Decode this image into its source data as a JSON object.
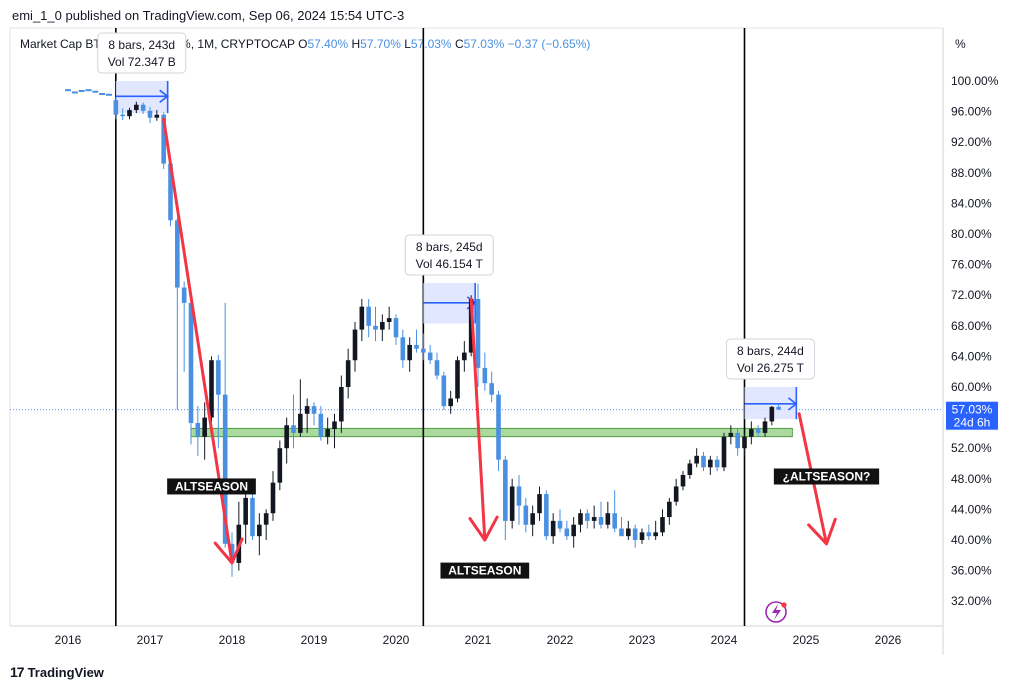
{
  "header": {
    "publish_line": "emi_1_0 published on TradingView.com, Sep 06, 2024 15:54 UTC-3",
    "symbol": "Market Cap BTC Dominance, %, 1M, CRYPTOCAP",
    "open_label": "O",
    "open_value": "57.40%",
    "high_label": "H",
    "high_value": "57.70%",
    "low_label": "L",
    "low_value": "57.03%",
    "close_label": "C",
    "close_value": "57.03%",
    "change": "−0.37 (−0.65%)"
  },
  "footer": {
    "logo_text": "TradingView"
  },
  "colors": {
    "up": "#131722",
    "down": "#4a90e2",
    "arrow": "#f23645",
    "zone": "#8fce7e",
    "measure_fill": "#dbe3ff",
    "measure_line": "#2962ff",
    "price_tag": "#2962ff"
  },
  "chart_data": {
    "type": "candlestick",
    "y_unit": "%",
    "ylim": [
      29,
      102
    ],
    "y_ticks": [
      "100.00%",
      "96.00%",
      "92.00%",
      "88.00%",
      "84.00%",
      "80.00%",
      "76.00%",
      "72.00%",
      "68.00%",
      "64.00%",
      "60.00%",
      "56.00%",
      "52.00%",
      "48.00%",
      "44.00%",
      "40.00%",
      "36.00%",
      "32.00%"
    ],
    "x_ticks": [
      "2016",
      "2017",
      "2018",
      "2019",
      "2020",
      "2021",
      "2022",
      "2023",
      "2024",
      "2025",
      "2026"
    ],
    "last_price_label": "57.03%",
    "countdown_label": "24d 6h",
    "candles": [
      {
        "d": "2016-08",
        "o": 97.5,
        "h": 97.9,
        "l": 95.0,
        "c": 95.6
      },
      {
        "d": "2016-09",
        "o": 95.6,
        "h": 96.4,
        "l": 94.9,
        "c": 95.4
      },
      {
        "d": "2016-10",
        "o": 95.4,
        "h": 96.5,
        "l": 95.0,
        "c": 96.2
      },
      {
        "d": "2016-11",
        "o": 96.2,
        "h": 97.3,
        "l": 95.8,
        "c": 96.9
      },
      {
        "d": "2016-12",
        "o": 96.9,
        "h": 97.2,
        "l": 95.7,
        "c": 96.1
      },
      {
        "d": "2017-01",
        "o": 96.1,
        "h": 96.6,
        "l": 94.5,
        "c": 95.2
      },
      {
        "d": "2017-02",
        "o": 95.2,
        "h": 96.2,
        "l": 94.8,
        "c": 95.6
      },
      {
        "d": "2017-03",
        "o": 95.6,
        "h": 95.9,
        "l": 88.5,
        "c": 89.2
      },
      {
        "d": "2017-04",
        "o": 89.2,
        "h": 89.5,
        "l": 81.0,
        "c": 81.8
      },
      {
        "d": "2017-05",
        "o": 81.8,
        "h": 82.1,
        "l": 57.0,
        "c": 73.0
      },
      {
        "d": "2017-06",
        "o": 73.0,
        "h": 73.8,
        "l": 62.0,
        "c": 71.0
      },
      {
        "d": "2017-07",
        "o": 71.0,
        "h": 71.9,
        "l": 52.5,
        "c": 55.3
      },
      {
        "d": "2017-08",
        "o": 55.3,
        "h": 57.5,
        "l": 51.0,
        "c": 53.5
      },
      {
        "d": "2017-09",
        "o": 53.5,
        "h": 58.0,
        "l": 50.5,
        "c": 56.0
      },
      {
        "d": "2017-10",
        "o": 56.0,
        "h": 64.0,
        "l": 55.0,
        "c": 63.5
      },
      {
        "d": "2017-11",
        "o": 63.5,
        "h": 64.2,
        "l": 52.0,
        "c": 59.0
      },
      {
        "d": "2017-12",
        "o": 59.0,
        "h": 71.0,
        "l": 39.0,
        "c": 39.5
      },
      {
        "d": "2018-01",
        "o": 39.5,
        "h": 41.0,
        "l": 35.2,
        "c": 37.0
      },
      {
        "d": "2018-02",
        "o": 37.0,
        "h": 45.0,
        "l": 36.0,
        "c": 42.0
      },
      {
        "d": "2018-03",
        "o": 42.0,
        "h": 46.5,
        "l": 39.5,
        "c": 45.5
      },
      {
        "d": "2018-04",
        "o": 45.5,
        "h": 47.0,
        "l": 40.0,
        "c": 40.5
      },
      {
        "d": "2018-05",
        "o": 40.5,
        "h": 43.5,
        "l": 38.0,
        "c": 42.0
      },
      {
        "d": "2018-06",
        "o": 42.0,
        "h": 44.0,
        "l": 40.0,
        "c": 43.5
      },
      {
        "d": "2018-07",
        "o": 43.5,
        "h": 49.0,
        "l": 42.5,
        "c": 47.5
      },
      {
        "d": "2018-08",
        "o": 47.5,
        "h": 53.0,
        "l": 46.5,
        "c": 52.0
      },
      {
        "d": "2018-09",
        "o": 52.0,
        "h": 56.0,
        "l": 50.0,
        "c": 55.0
      },
      {
        "d": "2018-10",
        "o": 55.0,
        "h": 59.0,
        "l": 52.0,
        "c": 54.0
      },
      {
        "d": "2018-11",
        "o": 54.0,
        "h": 61.0,
        "l": 53.5,
        "c": 56.5
      },
      {
        "d": "2018-12",
        "o": 56.5,
        "h": 58.5,
        "l": 54.0,
        "c": 57.5
      },
      {
        "d": "2019-01",
        "o": 57.5,
        "h": 58.0,
        "l": 55.0,
        "c": 56.5
      },
      {
        "d": "2019-02",
        "o": 56.5,
        "h": 57.5,
        "l": 53.0,
        "c": 53.5
      },
      {
        "d": "2019-03",
        "o": 53.5,
        "h": 56.0,
        "l": 52.5,
        "c": 54.5
      },
      {
        "d": "2019-04",
        "o": 54.5,
        "h": 56.5,
        "l": 52.0,
        "c": 55.5
      },
      {
        "d": "2019-05",
        "o": 55.5,
        "h": 61.5,
        "l": 54.0,
        "c": 60.0
      },
      {
        "d": "2019-06",
        "o": 60.0,
        "h": 65.0,
        "l": 58.5,
        "c": 63.5
      },
      {
        "d": "2019-07",
        "o": 63.5,
        "h": 68.5,
        "l": 62.0,
        "c": 67.5
      },
      {
        "d": "2019-08",
        "o": 67.5,
        "h": 71.5,
        "l": 66.0,
        "c": 70.5
      },
      {
        "d": "2019-09",
        "o": 70.5,
        "h": 71.5,
        "l": 66.5,
        "c": 68.0
      },
      {
        "d": "2019-10",
        "o": 68.0,
        "h": 70.5,
        "l": 66.0,
        "c": 67.5
      },
      {
        "d": "2019-11",
        "o": 67.5,
        "h": 69.5,
        "l": 66.0,
        "c": 68.5
      },
      {
        "d": "2019-12",
        "o": 68.5,
        "h": 70.5,
        "l": 67.5,
        "c": 69.0
      },
      {
        "d": "2020-01",
        "o": 69.0,
        "h": 69.5,
        "l": 65.5,
        "c": 66.5
      },
      {
        "d": "2020-02",
        "o": 66.5,
        "h": 67.5,
        "l": 62.5,
        "c": 63.5
      },
      {
        "d": "2020-03",
        "o": 63.5,
        "h": 66.5,
        "l": 62.0,
        "c": 65.5
      },
      {
        "d": "2020-04",
        "o": 65.5,
        "h": 67.5,
        "l": 64.5,
        "c": 65.0
      },
      {
        "d": "2020-05",
        "o": 65.0,
        "h": 67.0,
        "l": 63.5,
        "c": 64.5
      },
      {
        "d": "2020-06",
        "o": 64.5,
        "h": 65.5,
        "l": 63.0,
        "c": 63.5
      },
      {
        "d": "2020-07",
        "o": 63.5,
        "h": 64.5,
        "l": 61.0,
        "c": 61.5
      },
      {
        "d": "2020-08",
        "o": 61.5,
        "h": 62.0,
        "l": 57.0,
        "c": 57.5
      },
      {
        "d": "2020-09",
        "o": 57.5,
        "h": 59.5,
        "l": 56.5,
        "c": 58.5
      },
      {
        "d": "2020-10",
        "o": 58.5,
        "h": 64.0,
        "l": 58.0,
        "c": 63.5
      },
      {
        "d": "2020-11",
        "o": 63.5,
        "h": 66.0,
        "l": 62.0,
        "c": 64.5
      },
      {
        "d": "2020-12",
        "o": 64.5,
        "h": 72.0,
        "l": 64.0,
        "c": 71.5
      },
      {
        "d": "2021-01",
        "o": 71.5,
        "h": 73.5,
        "l": 60.0,
        "c": 62.5
      },
      {
        "d": "2021-02",
        "o": 62.5,
        "h": 64.5,
        "l": 59.5,
        "c": 60.5
      },
      {
        "d": "2021-03",
        "o": 60.5,
        "h": 62.0,
        "l": 58.0,
        "c": 59.0
      },
      {
        "d": "2021-04",
        "o": 59.0,
        "h": 59.5,
        "l": 49.0,
        "c": 50.5
      },
      {
        "d": "2021-05",
        "o": 50.5,
        "h": 51.0,
        "l": 40.0,
        "c": 42.5
      },
      {
        "d": "2021-06",
        "o": 42.5,
        "h": 48.0,
        "l": 41.5,
        "c": 47.0
      },
      {
        "d": "2021-07",
        "o": 47.0,
        "h": 48.5,
        "l": 42.0,
        "c": 44.5
      },
      {
        "d": "2021-08",
        "o": 44.5,
        "h": 45.5,
        "l": 41.0,
        "c": 42.0
      },
      {
        "d": "2021-09",
        "o": 42.0,
        "h": 44.5,
        "l": 40.5,
        "c": 43.5
      },
      {
        "d": "2021-10",
        "o": 43.5,
        "h": 47.0,
        "l": 42.5,
        "c": 46.0
      },
      {
        "d": "2021-11",
        "o": 46.0,
        "h": 46.5,
        "l": 40.0,
        "c": 40.5
      },
      {
        "d": "2021-12",
        "o": 40.5,
        "h": 43.5,
        "l": 39.5,
        "c": 42.5
      },
      {
        "d": "2022-01",
        "o": 42.5,
        "h": 44.0,
        "l": 41.0,
        "c": 41.5
      },
      {
        "d": "2022-02",
        "o": 41.5,
        "h": 42.5,
        "l": 40.0,
        "c": 40.5
      },
      {
        "d": "2022-03",
        "o": 40.5,
        "h": 43.0,
        "l": 39.0,
        "c": 42.0
      },
      {
        "d": "2022-04",
        "o": 42.0,
        "h": 44.0,
        "l": 41.0,
        "c": 43.5
      },
      {
        "d": "2022-05",
        "o": 43.5,
        "h": 44.0,
        "l": 41.5,
        "c": 42.5
      },
      {
        "d": "2022-06",
        "o": 42.5,
        "h": 44.5,
        "l": 41.5,
        "c": 43.0
      },
      {
        "d": "2022-07",
        "o": 43.0,
        "h": 45.0,
        "l": 41.5,
        "c": 42.0
      },
      {
        "d": "2022-08",
        "o": 42.0,
        "h": 45.0,
        "l": 41.5,
        "c": 43.5
      },
      {
        "d": "2022-09",
        "o": 43.5,
        "h": 46.5,
        "l": 41.0,
        "c": 41.5
      },
      {
        "d": "2022-10",
        "o": 41.5,
        "h": 43.0,
        "l": 40.5,
        "c": 40.5
      },
      {
        "d": "2022-11",
        "o": 40.5,
        "h": 42.5,
        "l": 40.0,
        "c": 41.5
      },
      {
        "d": "2022-12",
        "o": 41.5,
        "h": 42.0,
        "l": 39.0,
        "c": 40.0
      },
      {
        "d": "2023-01",
        "o": 40.0,
        "h": 41.5,
        "l": 39.5,
        "c": 41.0
      },
      {
        "d": "2023-02",
        "o": 41.0,
        "h": 42.0,
        "l": 40.0,
        "c": 40.5
      },
      {
        "d": "2023-03",
        "o": 40.5,
        "h": 42.5,
        "l": 40.0,
        "c": 41.0
      },
      {
        "d": "2023-04",
        "o": 41.0,
        "h": 44.0,
        "l": 40.5,
        "c": 43.0
      },
      {
        "d": "2023-05",
        "o": 43.0,
        "h": 45.5,
        "l": 42.0,
        "c": 45.0
      },
      {
        "d": "2023-06",
        "o": 45.0,
        "h": 48.0,
        "l": 44.5,
        "c": 47.0
      },
      {
        "d": "2023-07",
        "o": 47.0,
        "h": 49.0,
        "l": 46.5,
        "c": 48.5
      },
      {
        "d": "2023-08",
        "o": 48.5,
        "h": 50.5,
        "l": 48.0,
        "c": 50.0
      },
      {
        "d": "2023-09",
        "o": 50.0,
        "h": 52.0,
        "l": 49.5,
        "c": 51.0
      },
      {
        "d": "2023-10",
        "o": 51.0,
        "h": 51.5,
        "l": 49.0,
        "c": 49.5
      },
      {
        "d": "2023-11",
        "o": 49.5,
        "h": 51.0,
        "l": 48.5,
        "c": 50.5
      },
      {
        "d": "2023-12",
        "o": 50.5,
        "h": 51.0,
        "l": 49.0,
        "c": 49.5
      },
      {
        "d": "2024-01",
        "o": 49.5,
        "h": 54.0,
        "l": 49.0,
        "c": 53.5
      },
      {
        "d": "2024-02",
        "o": 53.5,
        "h": 55.0,
        "l": 52.5,
        "c": 54.0
      },
      {
        "d": "2024-03",
        "o": 54.0,
        "h": 54.5,
        "l": 51.0,
        "c": 52.0
      },
      {
        "d": "2024-04",
        "o": 52.0,
        "h": 54.0,
        "l": 51.0,
        "c": 53.5
      },
      {
        "d": "2024-05",
        "o": 53.5,
        "h": 55.5,
        "l": 52.5,
        "c": 54.5
      },
      {
        "d": "2024-06",
        "o": 54.5,
        "h": 55.0,
        "l": 53.5,
        "c": 54.0
      },
      {
        "d": "2024-07",
        "o": 54.0,
        "h": 56.0,
        "l": 53.5,
        "c": 55.5
      },
      {
        "d": "2024-08",
        "o": 55.5,
        "h": 57.5,
        "l": 55.0,
        "c": 57.4
      },
      {
        "d": "2024-09",
        "o": 57.4,
        "h": 57.7,
        "l": 57.03,
        "c": 57.03
      }
    ],
    "pre_history": [
      {
        "d": "2016-01",
        "v": 98.8
      },
      {
        "d": "2016-02",
        "v": 98.5
      },
      {
        "d": "2016-03",
        "v": 98.7
      },
      {
        "d": "2016-04",
        "v": 98.8
      },
      {
        "d": "2016-05",
        "v": 98.6
      },
      {
        "d": "2016-06",
        "v": 98.3
      },
      {
        "d": "2016-07",
        "v": 98.2
      }
    ],
    "vertical_lines": [
      "2016-08",
      "2020-05",
      "2024-04"
    ],
    "support_zone": {
      "y0": 53.5,
      "y1": 54.6,
      "from": "2017-07",
      "to": "2024-11"
    },
    "measures": [
      {
        "from": "2016-08",
        "to": "2017-03",
        "y0": 95.8,
        "y1": 100.0,
        "line_y": 98.0,
        "label1": "8 bars, 243d",
        "label2": "Vol 72.347 B"
      },
      {
        "from": "2020-05",
        "to": "2020-12",
        "y0": 68.3,
        "y1": 73.6,
        "line_y": 71.0,
        "label1": "8 bars, 245d",
        "label2": "Vol 46.154 T"
      },
      {
        "from": "2024-04",
        "to": "2024-11",
        "y0": 55.8,
        "y1": 60.0,
        "line_y": 57.8,
        "label1": "8 bars, 244d",
        "label2": "Vol 26.275 T"
      }
    ],
    "arrows": [
      {
        "from": [
          "2017-03",
          95.0
        ],
        "to": [
          "2018-01",
          37.0
        ]
      },
      {
        "from": [
          "2020-12",
          71.5
        ],
        "to": [
          "2021-02",
          40.0
        ]
      },
      {
        "from": [
          "2024-12",
          56.5
        ],
        "to": [
          "2025-04",
          39.5
        ]
      }
    ],
    "annotations": [
      {
        "text": "ALTSEASON",
        "at": [
          "2017-10",
          47.0
        ]
      },
      {
        "text": "ALTSEASON",
        "at": [
          "2021-02",
          36.0
        ]
      },
      {
        "text": "¿ALTSEASON?",
        "at": [
          "2025-04",
          48.3
        ]
      }
    ]
  }
}
